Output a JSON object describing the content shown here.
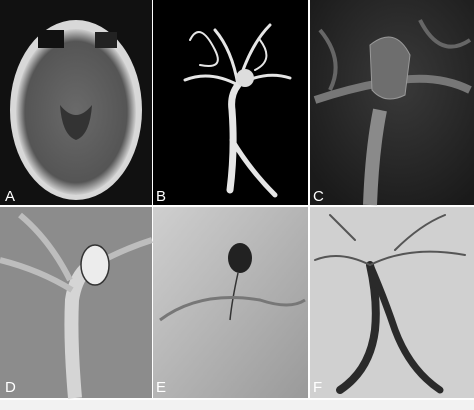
{
  "figure": {
    "panels": [
      {
        "label": "A"
      },
      {
        "label": "B"
      },
      {
        "label": "C"
      },
      {
        "label": "D"
      },
      {
        "label": "E"
      },
      {
        "label": "F"
      }
    ]
  }
}
